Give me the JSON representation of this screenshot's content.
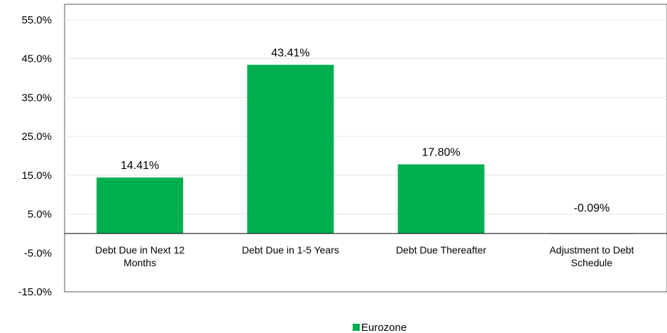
{
  "chart_data": {
    "type": "bar",
    "categories": [
      [
        "Debt Due in Next 12",
        "Months"
      ],
      [
        "Debt Due in 1-5 Years"
      ],
      [
        "Debt Due Thereafter"
      ],
      [
        "Adjustment to Debt",
        "Schedule"
      ]
    ],
    "series": [
      {
        "name": "Eurozone",
        "color": "#00B050",
        "values": [
          14.41,
          43.41,
          17.8,
          -0.09
        ],
        "labels": [
          "14.41%",
          "43.41%",
          "17.80%",
          "-0.09%"
        ]
      }
    ],
    "yticks": [
      55,
      45,
      35,
      25,
      15,
      5,
      -5,
      -15
    ],
    "ytick_labels": [
      "55.0%",
      "45.0%",
      "35.0%",
      "25.0%",
      "15.0%",
      "5.0%",
      "-5.0%",
      "-15.0%"
    ],
    "ylim": [
      -15,
      59
    ],
    "grid": true,
    "legend_position": "bottom"
  }
}
